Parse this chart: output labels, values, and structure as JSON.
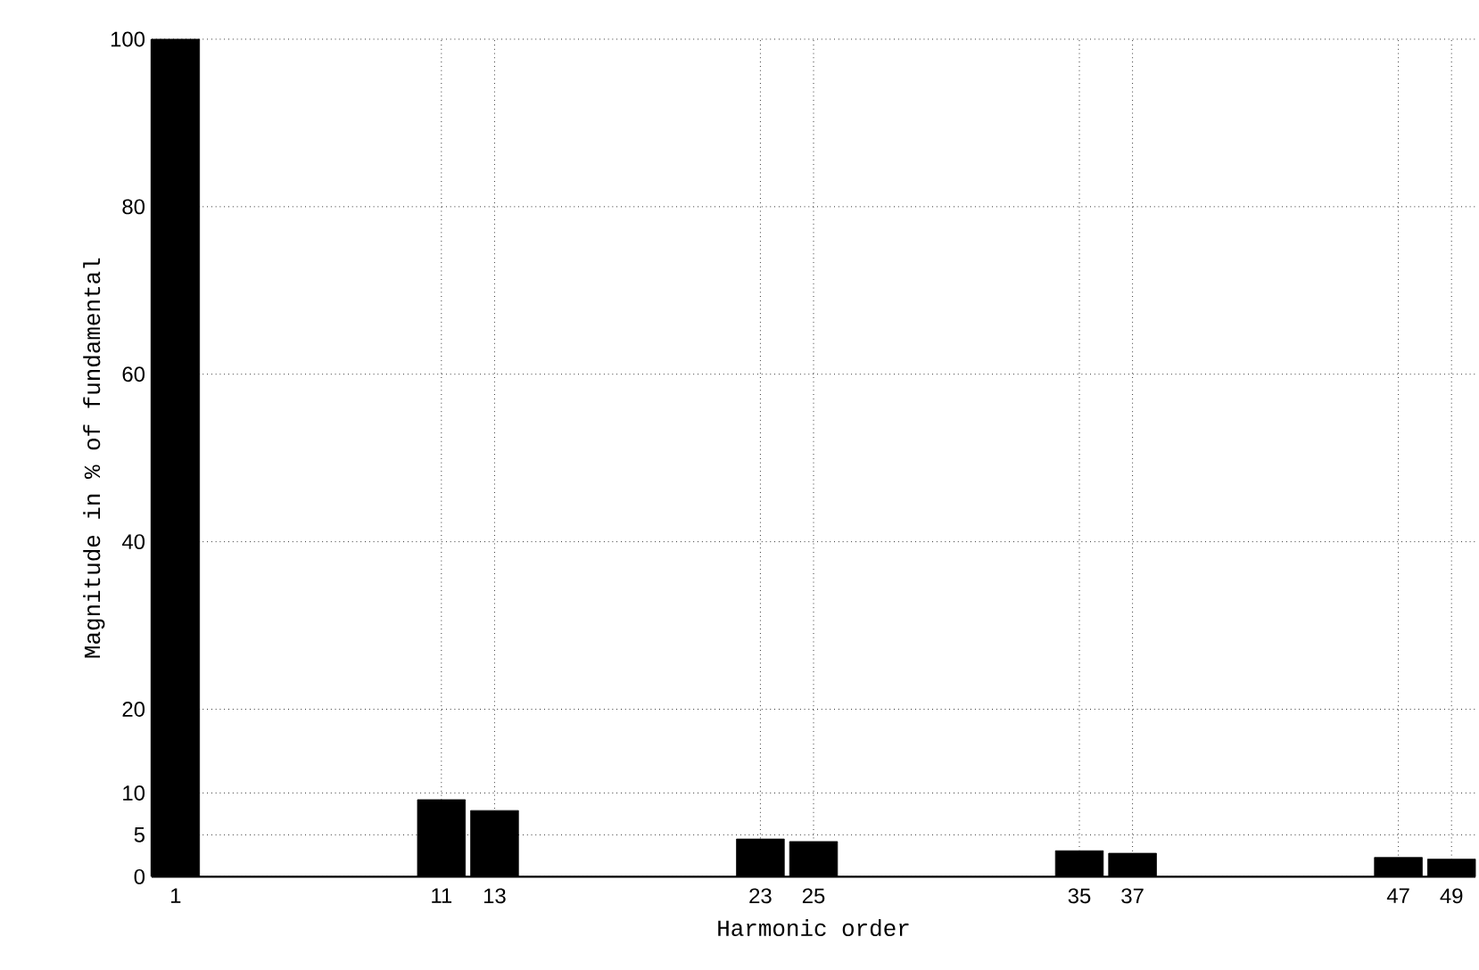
{
  "chart_data": {
    "type": "bar",
    "xlabel": "Harmonic order",
    "ylabel": "Magnitude in % of fundamental",
    "x": [
      1,
      11,
      13,
      23,
      25,
      35,
      37,
      47,
      49
    ],
    "values": [
      100,
      9.2,
      7.9,
      4.5,
      4.2,
      3.1,
      2.8,
      2.3,
      2.1
    ],
    "color": "#000000",
    "xlim": [
      0.1,
      49.9
    ],
    "xticks": [
      1,
      11,
      13,
      23,
      25,
      35,
      37,
      47,
      49
    ],
    "ylim": [
      0,
      100
    ],
    "yticks": [
      0,
      5,
      10,
      20,
      40,
      60,
      80,
      100
    ],
    "grid": true
  }
}
